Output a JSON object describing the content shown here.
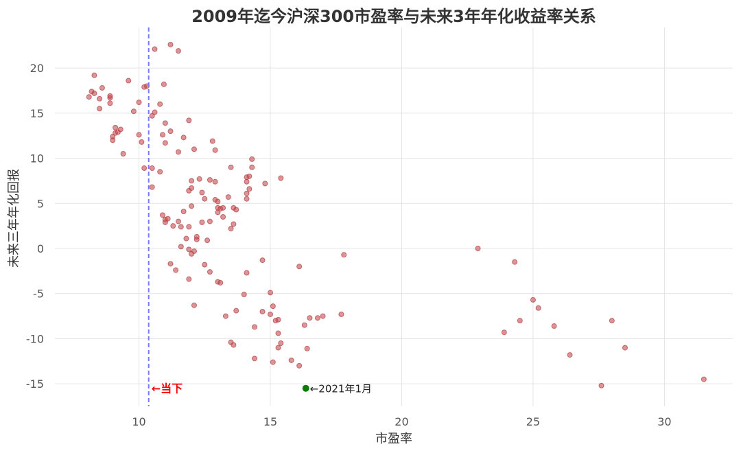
{
  "chart_data": {
    "type": "scatter",
    "title": "2009年迄今沪深300市盈率与未来3年年化收益率关系",
    "xlabel": "市盈率",
    "ylabel": "未来三年年化回报",
    "xlim": [
      6.8,
      32.6
    ],
    "ylim": [
      -17.5,
      24.5
    ],
    "xticks": [
      10,
      15,
      20,
      25,
      30
    ],
    "yticks": [
      -15,
      -10,
      -5,
      0,
      5,
      10,
      15,
      20
    ],
    "grid": true,
    "current_pe": 10.37,
    "current_label": "←当下",
    "highlight": {
      "x": 16.35,
      "y": -15.5,
      "label": "←2021年1月",
      "color": "#008000"
    },
    "point_color": "#c44e52",
    "vline_color": "#7777ff",
    "points": [
      [
        8.1,
        16.8
      ],
      [
        8.2,
        17.4
      ],
      [
        8.3,
        19.2
      ],
      [
        8.3,
        17.2
      ],
      [
        8.5,
        16.6
      ],
      [
        8.5,
        15.5
      ],
      [
        8.6,
        17.8
      ],
      [
        8.9,
        16.7
      ],
      [
        8.9,
        16.1
      ],
      [
        8.9,
        16.9
      ],
      [
        9.0,
        12.4
      ],
      [
        9.0,
        12.0
      ],
      [
        9.1,
        12.8
      ],
      [
        9.1,
        13.4
      ],
      [
        9.2,
        12.9
      ],
      [
        9.3,
        13.2
      ],
      [
        9.4,
        10.5
      ],
      [
        9.6,
        18.6
      ],
      [
        9.8,
        15.2
      ],
      [
        10.0,
        16.2
      ],
      [
        10.0,
        12.6
      ],
      [
        10.1,
        11.8
      ],
      [
        10.2,
        8.9
      ],
      [
        10.2,
        17.9
      ],
      [
        10.3,
        18.0
      ],
      [
        10.5,
        14.7
      ],
      [
        10.5,
        8.9
      ],
      [
        10.5,
        6.8
      ],
      [
        10.6,
        15.1
      ],
      [
        10.6,
        22.1
      ],
      [
        10.8,
        16.0
      ],
      [
        10.8,
        8.5
      ],
      [
        10.9,
        3.7
      ],
      [
        10.9,
        12.6
      ],
      [
        10.95,
        18.2
      ],
      [
        11.0,
        13.9
      ],
      [
        11.0,
        11.7
      ],
      [
        11.0,
        3.2
      ],
      [
        11.0,
        2.9
      ],
      [
        11.1,
        3.3
      ],
      [
        11.2,
        22.6
      ],
      [
        11.2,
        13.0
      ],
      [
        11.2,
        -1.7
      ],
      [
        11.3,
        2.5
      ],
      [
        11.4,
        -2.4
      ],
      [
        11.5,
        3.0
      ],
      [
        11.5,
        10.7
      ],
      [
        11.5,
        21.9
      ],
      [
        11.6,
        2.4
      ],
      [
        11.6,
        0.2
      ],
      [
        11.7,
        12.3
      ],
      [
        11.7,
        4.1
      ],
      [
        11.8,
        1.1
      ],
      [
        11.9,
        14.2
      ],
      [
        11.9,
        2.4
      ],
      [
        11.9,
        6.4
      ],
      [
        11.9,
        -3.4
      ],
      [
        11.9,
        -0.1
      ],
      [
        12.0,
        7.5
      ],
      [
        12.0,
        6.7
      ],
      [
        12.0,
        4.7
      ],
      [
        12.0,
        -0.6
      ],
      [
        12.1,
        11.0
      ],
      [
        12.1,
        -0.3
      ],
      [
        12.1,
        -6.3
      ],
      [
        12.2,
        1.0
      ],
      [
        12.2,
        1.3
      ],
      [
        12.3,
        7.7
      ],
      [
        12.4,
        6.2
      ],
      [
        12.4,
        2.9
      ],
      [
        12.5,
        5.5
      ],
      [
        12.5,
        -1.8
      ],
      [
        12.6,
        0.9
      ],
      [
        12.7,
        7.6
      ],
      [
        12.7,
        3.0
      ],
      [
        12.7,
        -2.6
      ],
      [
        12.8,
        11.9
      ],
      [
        12.9,
        10.9
      ],
      [
        12.9,
        7.4
      ],
      [
        12.9,
        5.4
      ],
      [
        13.0,
        5.2
      ],
      [
        13.0,
        4.5
      ],
      [
        13.0,
        -3.7
      ],
      [
        13.0,
        4.0
      ],
      [
        13.1,
        4.4
      ],
      [
        13.1,
        -3.8
      ],
      [
        13.2,
        4.5
      ],
      [
        13.2,
        3.5
      ],
      [
        13.3,
        -7.5
      ],
      [
        13.4,
        5.7
      ],
      [
        13.5,
        9.0
      ],
      [
        13.5,
        2.2
      ],
      [
        13.5,
        -10.4
      ],
      [
        13.6,
        4.5
      ],
      [
        13.6,
        -10.7
      ],
      [
        13.6,
        2.7
      ],
      [
        13.7,
        -6.9
      ],
      [
        13.7,
        4.3
      ],
      [
        14.0,
        -5.1
      ],
      [
        14.1,
        7.4
      ],
      [
        14.1,
        7.9
      ],
      [
        14.1,
        6.1
      ],
      [
        14.1,
        5.5
      ],
      [
        14.1,
        -2.7
      ],
      [
        14.2,
        8.0
      ],
      [
        14.2,
        6.6
      ],
      [
        14.3,
        9.0
      ],
      [
        14.3,
        9.9
      ],
      [
        14.4,
        -8.7
      ],
      [
        14.4,
        -12.2
      ],
      [
        14.7,
        -7.0
      ],
      [
        14.7,
        -1.3
      ],
      [
        14.8,
        7.2
      ],
      [
        15.0,
        -4.9
      ],
      [
        15.0,
        -7.3
      ],
      [
        15.1,
        -6.4
      ],
      [
        15.1,
        -12.6
      ],
      [
        15.2,
        -8.0
      ],
      [
        15.3,
        -7.9
      ],
      [
        15.3,
        -11.0
      ],
      [
        15.3,
        -9.4
      ],
      [
        15.4,
        -10.5
      ],
      [
        15.4,
        7.8
      ],
      [
        15.8,
        -12.4
      ],
      [
        16.1,
        -2.0
      ],
      [
        16.1,
        -13.0
      ],
      [
        16.3,
        -8.5
      ],
      [
        16.4,
        -11.1
      ],
      [
        16.5,
        -7.7
      ],
      [
        16.8,
        -7.7
      ],
      [
        17.0,
        -7.5
      ],
      [
        17.7,
        -7.3
      ],
      [
        17.8,
        -0.7
      ],
      [
        22.9,
        0.0
      ],
      [
        23.9,
        -9.3
      ],
      [
        24.3,
        -1.5
      ],
      [
        24.5,
        -8.0
      ],
      [
        25.0,
        -5.7
      ],
      [
        25.2,
        -6.6
      ],
      [
        25.8,
        -8.6
      ],
      [
        26.4,
        -11.8
      ],
      [
        27.6,
        -15.2
      ],
      [
        28.0,
        -8.0
      ],
      [
        28.5,
        -11.0
      ],
      [
        31.5,
        -14.5
      ]
    ]
  }
}
